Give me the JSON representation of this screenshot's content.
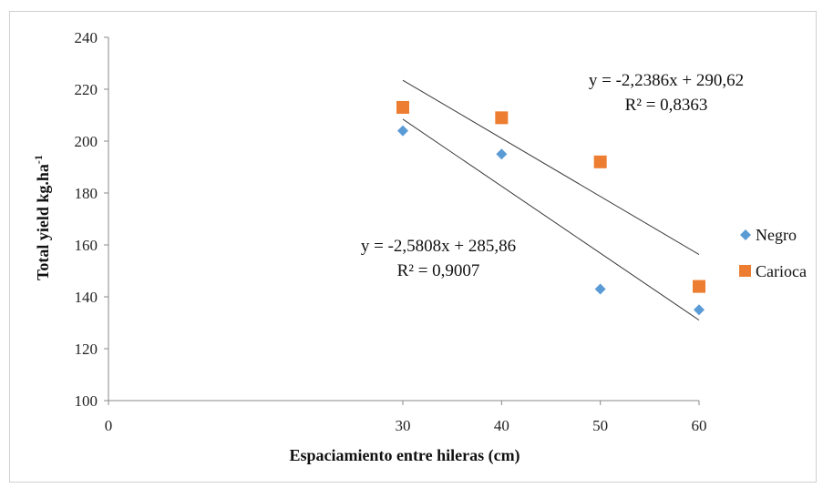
{
  "chart_data": {
    "type": "scatter",
    "title": "",
    "xlabel": "Espaciamiento entre hileras  (cm)",
    "ylabel_main": "Total yield kg.ha",
    "ylabel_sup": "-1",
    "xlim": [
      0,
      60
    ],
    "ylim": [
      100,
      240
    ],
    "xticks": [
      "0",
      "30",
      "40",
      "50",
      "60"
    ],
    "yticks": [
      "100",
      "120",
      "140",
      "160",
      "180",
      "200",
      "220",
      "240"
    ],
    "grid": false,
    "legend_position": "right",
    "series": [
      {
        "name": "Negro",
        "color": "#5b9bd5",
        "marker": "diamond",
        "points": [
          [
            30,
            204
          ],
          [
            40,
            195
          ],
          [
            50,
            143
          ],
          [
            60,
            135
          ]
        ],
        "trendline": {
          "slope": -2.5808,
          "intercept": 285.86,
          "equation": "y = -2,5808x + 285,86",
          "r2": "R² = 0,9007"
        }
      },
      {
        "name": "Carioca",
        "color": "#ed7d31",
        "marker": "square",
        "points": [
          [
            30,
            213
          ],
          [
            40,
            209
          ],
          [
            50,
            192
          ],
          [
            60,
            144
          ]
        ],
        "trendline": {
          "slope": -2.2386,
          "intercept": 290.62,
          "equation": "y = -2,2386x + 290,62",
          "r2": "R² = 0,8363"
        }
      }
    ]
  }
}
